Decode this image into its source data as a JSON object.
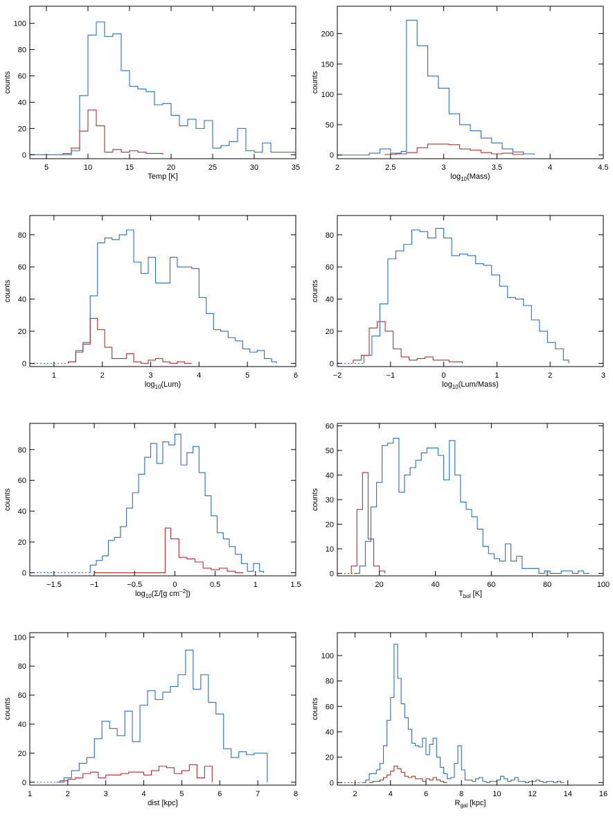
{
  "colors": {
    "all": "#2a6fb8",
    "subset": "#b03030",
    "accent": "#2e8b3e",
    "axis": "#000000"
  },
  "chart_data": [
    {
      "type": "histogram",
      "xlabel": "Temp [K]",
      "ylabel": "counts",
      "xlim": [
        3,
        35
      ],
      "ylim": [
        -3,
        113
      ],
      "xticks": [
        5,
        10,
        15,
        20,
        25,
        30,
        35
      ],
      "yticks": [
        0,
        20,
        40,
        60,
        80,
        100
      ],
      "series": [
        {
          "color": "#2a6fb8",
          "x": [
            3,
            4,
            5,
            6,
            7,
            8,
            9,
            10,
            11,
            12,
            13,
            14,
            15,
            16,
            17,
            18,
            19,
            20,
            21,
            22,
            23,
            24,
            25,
            26,
            27,
            28,
            29,
            30,
            31,
            32,
            33,
            34,
            35
          ],
          "values": [
            0,
            0,
            0,
            0,
            0,
            3,
            45,
            91,
            101,
            90,
            92,
            64,
            52,
            50,
            48,
            38,
            39,
            30,
            22,
            27,
            20,
            26,
            5,
            7,
            10,
            20,
            3,
            2,
            9,
            2,
            2,
            2
          ]
        },
        {
          "color": "#b03030",
          "x": [
            7,
            8,
            9,
            10,
            11,
            12,
            13,
            14,
            15,
            16,
            17,
            18,
            19
          ],
          "values": [
            1,
            5,
            18,
            34,
            22,
            2,
            4,
            2,
            3,
            2,
            1,
            1
          ]
        }
      ]
    },
    {
      "type": "histogram",
      "xlabel": "log10(Mass)",
      "ylabel": "counts",
      "xlim": [
        2.0,
        4.5
      ],
      "ylim": [
        -6,
        245
      ],
      "xticks": [
        2.0,
        2.5,
        3.0,
        3.5,
        4.0,
        4.5
      ],
      "yticks": [
        0,
        50,
        100,
        150,
        200
      ],
      "series": [
        {
          "color": "#2a6fb8",
          "x": [
            2.0,
            2.1,
            2.2,
            2.3,
            2.4,
            2.5,
            2.6,
            2.65,
            2.75,
            2.85,
            2.95,
            3.05,
            3.15,
            3.25,
            3.35,
            3.45,
            3.55,
            3.65,
            3.75,
            3.85
          ],
          "values": [
            0,
            0,
            0,
            3,
            10,
            3,
            6,
            222,
            180,
            130,
            110,
            68,
            50,
            40,
            28,
            20,
            10,
            5,
            2
          ]
        },
        {
          "color": "#b03030",
          "x": [
            2.45,
            2.55,
            2.65,
            2.75,
            2.85,
            2.95,
            3.05,
            3.15,
            3.25,
            3.35,
            3.45,
            3.55,
            3.65,
            3.75
          ],
          "values": [
            1,
            2,
            4,
            12,
            18,
            18,
            17,
            10,
            8,
            4,
            2,
            3,
            1
          ]
        }
      ]
    },
    {
      "type": "histogram",
      "xlabel": "log10(Lum)",
      "ylabel": "counts",
      "xlim": [
        0.5,
        6
      ],
      "ylim": [
        -2,
        92
      ],
      "xticks": [
        1,
        2,
        3,
        4,
        5,
        6
      ],
      "yticks": [
        0,
        20,
        40,
        60,
        80
      ],
      "series": [
        {
          "color": "#2a6fb8",
          "x": [
            1.3,
            1.45,
            1.6,
            1.75,
            1.9,
            2.05,
            2.2,
            2.35,
            2.5,
            2.65,
            2.8,
            2.95,
            3.1,
            3.25,
            3.4,
            3.55,
            3.7,
            3.85,
            4.0,
            4.15,
            4.3,
            4.45,
            4.6,
            4.75,
            4.9,
            5.05,
            5.2,
            5.35,
            5.5,
            5.6
          ],
          "values": [
            1,
            8,
            13,
            42,
            75,
            78,
            77,
            80,
            83,
            63,
            56,
            66,
            50,
            50,
            66,
            60,
            60,
            59,
            41,
            31,
            21,
            20,
            16,
            14,
            9,
            7,
            8,
            3,
            1
          ]
        },
        {
          "color": "#b03030",
          "x": [
            1.3,
            1.45,
            1.6,
            1.75,
            1.9,
            2.05,
            2.2,
            2.35,
            2.5,
            2.65,
            2.8,
            2.95,
            3.1,
            3.25,
            3.4,
            3.55,
            3.7,
            3.85
          ],
          "values": [
            1,
            7,
            12,
            28,
            21,
            10,
            3,
            3,
            6,
            1,
            0,
            2,
            3,
            1,
            0,
            1,
            0
          ]
        }
      ]
    },
    {
      "type": "histogram",
      "xlabel": "log10(Lum/Mass)",
      "ylabel": "counts",
      "xlim": [
        -2,
        3
      ],
      "ylim": [
        -2,
        92
      ],
      "xticks": [
        -2,
        -1,
        0,
        1,
        2,
        3
      ],
      "yticks": [
        0,
        20,
        40,
        60,
        80
      ],
      "series": [
        {
          "color": "#2a6fb8",
          "x": [
            -1.5,
            -1.35,
            -1.2,
            -1.05,
            -0.9,
            -0.75,
            -0.6,
            -0.45,
            -0.3,
            -0.15,
            0.0,
            0.15,
            0.3,
            0.45,
            0.6,
            0.75,
            0.9,
            1.05,
            1.2,
            1.35,
            1.5,
            1.65,
            1.8,
            1.95,
            2.1,
            2.25,
            2.35
          ],
          "values": [
            5,
            17,
            37,
            65,
            70,
            74,
            83,
            82,
            78,
            84,
            78,
            67,
            68,
            67,
            62,
            61,
            55,
            48,
            41,
            40,
            36,
            27,
            20,
            13,
            9,
            2
          ]
        },
        {
          "color": "#b03030",
          "x": [
            -1.7,
            -1.55,
            -1.4,
            -1.25,
            -1.1,
            -0.95,
            -0.8,
            -0.65,
            -0.5,
            -0.35,
            -0.2,
            -0.05,
            0.1,
            0.25,
            0.35
          ],
          "values": [
            2,
            5,
            22,
            26,
            20,
            9,
            4,
            2,
            3,
            4,
            2,
            2,
            1,
            1
          ]
        }
      ]
    },
    {
      "type": "histogram",
      "xlabel": "log10(Σ/[g cm−2])",
      "ylabel": "counts",
      "xlim": [
        -1.8,
        1.5
      ],
      "ylim": [
        -2,
        97
      ],
      "xticks": [
        -1.5,
        -1.0,
        -0.5,
        0.0,
        0.5,
        1.0,
        1.5
      ],
      "yticks": [
        0,
        20,
        40,
        60,
        80
      ],
      "series": [
        {
          "color": "#2a6fb8",
          "x": [
            -1.05,
            -0.975,
            -0.9,
            -0.825,
            -0.75,
            -0.675,
            -0.6,
            -0.525,
            -0.45,
            -0.375,
            -0.3,
            -0.225,
            -0.15,
            -0.075,
            0.0,
            0.075,
            0.15,
            0.225,
            0.3,
            0.375,
            0.45,
            0.525,
            0.6,
            0.675,
            0.75,
            0.825,
            0.9,
            0.975,
            1.05,
            1.1
          ],
          "values": [
            5,
            8,
            11,
            21,
            23,
            30,
            42,
            52,
            64,
            75,
            84,
            71,
            85,
            83,
            90,
            70,
            78,
            82,
            65,
            50,
            37,
            26,
            22,
            17,
            12,
            6,
            1,
            6,
            1
          ]
        },
        {
          "color": "#b03030",
          "x": [
            -1.0,
            -0.9,
            -0.8,
            -0.7,
            -0.6,
            -0.5,
            -0.4,
            -0.3,
            -0.2,
            -0.12,
            -0.05,
            0.05,
            0.15,
            0.25,
            0.35,
            0.45,
            0.55,
            0.65,
            0.75,
            0.85
          ],
          "values": [
            0,
            0,
            0,
            0,
            0,
            0,
            0,
            0,
            0,
            29,
            22,
            10,
            9,
            7,
            3,
            2,
            3,
            1,
            0
          ]
        }
      ]
    },
    {
      "type": "histogram",
      "xlabel": "Tbol [K]",
      "ylabel": "counts",
      "xlim": [
        5,
        100
      ],
      "ylim": [
        -1,
        61
      ],
      "xticks": [
        20,
        40,
        60,
        80,
        100
      ],
      "yticks": [
        0,
        10,
        20,
        30,
        40,
        50,
        60
      ],
      "series": [
        {
          "color": "#2a6fb8",
          "x": [
            11,
            13,
            15,
            17,
            19,
            21,
            23,
            25,
            27,
            29,
            31,
            33,
            35,
            37,
            39,
            41,
            43,
            45,
            47,
            49,
            51,
            53,
            55,
            57,
            59,
            61,
            63,
            65,
            67,
            69,
            71,
            73,
            75,
            77,
            79,
            81,
            83,
            85,
            87,
            89,
            91,
            93,
            95
          ],
          "values": [
            0,
            3,
            13,
            27,
            37,
            52,
            53,
            55,
            33,
            40,
            43,
            46,
            49,
            51,
            51,
            48,
            38,
            54,
            40,
            29,
            26,
            23,
            18,
            11,
            8,
            6,
            5,
            12,
            5,
            7,
            2,
            2,
            2,
            0,
            1,
            0,
            0,
            1,
            1,
            0,
            1,
            0
          ]
        },
        {
          "color": "#b03030",
          "x": [
            10,
            12,
            14,
            16,
            18,
            20,
            22
          ],
          "values": [
            3,
            26,
            41,
            14,
            3,
            1
          ]
        }
      ]
    },
    {
      "type": "histogram",
      "xlabel": "dist [kpc]",
      "ylabel": "counts",
      "xlim": [
        1,
        8
      ],
      "ylim": [
        -2,
        103
      ],
      "xticks": [
        1,
        2,
        3,
        4,
        5,
        6,
        7,
        8
      ],
      "yticks": [
        0,
        20,
        40,
        60,
        80,
        100
      ],
      "series": [
        {
          "color": "#2a6fb8",
          "x": [
            1.7,
            1.9,
            2.1,
            2.3,
            2.5,
            2.7,
            2.9,
            3.1,
            3.3,
            3.5,
            3.7,
            3.9,
            4.1,
            4.3,
            4.5,
            4.7,
            4.9,
            5.1,
            5.3,
            5.5,
            5.7,
            5.9,
            6.1,
            6.3,
            6.5,
            6.7,
            6.9,
            7.1,
            7.25
          ],
          "values": [
            0,
            3,
            8,
            13,
            17,
            30,
            42,
            37,
            32,
            49,
            28,
            53,
            63,
            57,
            62,
            66,
            74,
            91,
            64,
            74,
            55,
            47,
            23,
            17,
            21,
            19,
            20,
            20
          ]
        },
        {
          "color": "#b03030",
          "x": [
            1.8,
            2.0,
            2.2,
            2.4,
            2.6,
            2.8,
            3.0,
            3.2,
            3.4,
            3.6,
            3.8,
            4.0,
            4.2,
            4.4,
            4.6,
            4.8,
            5.0,
            5.2,
            5.4,
            5.6,
            5.8
          ],
          "values": [
            1,
            2,
            3,
            6,
            7,
            3,
            5,
            5,
            6,
            7,
            7,
            5,
            8,
            11,
            10,
            6,
            8,
            12,
            3,
            11
          ]
        }
      ]
    },
    {
      "type": "histogram",
      "xlabel": "Rgal [kpc]",
      "ylabel": "counts",
      "xlim": [
        1,
        16
      ],
      "ylim": [
        -2,
        118
      ],
      "xticks": [
        2,
        4,
        6,
        8,
        10,
        12,
        14,
        16
      ],
      "yticks": [
        0,
        20,
        40,
        60,
        80,
        100
      ],
      "series": [
        {
          "color": "#2a6fb8",
          "x": [
            2.4,
            2.6,
            2.8,
            3.0,
            3.2,
            3.4,
            3.6,
            3.8,
            4.0,
            4.2,
            4.4,
            4.6,
            4.8,
            5.0,
            5.2,
            5.4,
            5.6,
            5.8,
            6.0,
            6.2,
            6.4,
            6.6,
            6.8,
            7.0,
            7.2,
            7.4,
            7.6,
            7.8,
            8.0,
            8.2,
            8.4,
            8.6,
            8.8,
            9.0,
            9.2,
            9.4,
            9.6,
            9.8,
            10.0,
            10.2,
            10.4,
            10.6,
            10.8,
            11.0,
            11.2,
            11.4,
            11.6,
            11.8,
            12.0,
            12.2,
            12.4,
            12.6,
            12.8,
            13.0,
            13.2,
            13.4,
            13.6,
            13.8
          ],
          "values": [
            0,
            2,
            7,
            7,
            10,
            15,
            29,
            49,
            67,
            109,
            82,
            62,
            51,
            42,
            31,
            29,
            28,
            35,
            22,
            30,
            35,
            20,
            12,
            7,
            3,
            4,
            15,
            29,
            10,
            2,
            2,
            1,
            3,
            4,
            1,
            0,
            1,
            1,
            2,
            5,
            3,
            1,
            2,
            4,
            1,
            1,
            0,
            1,
            1,
            2,
            1,
            0,
            1,
            1,
            0,
            1,
            0
          ]
        },
        {
          "color": "#b03030",
          "x": [
            2.8,
            3.0,
            3.2,
            3.4,
            3.6,
            3.8,
            4.0,
            4.2,
            4.4,
            4.6,
            4.8,
            5.0,
            5.2,
            5.4,
            5.6,
            5.8,
            6.0,
            6.2,
            6.4,
            6.6,
            6.8,
            7.0,
            7.2
          ],
          "values": [
            0,
            1,
            1,
            2,
            4,
            6,
            9,
            13,
            11,
            8,
            5,
            4,
            5,
            3,
            3,
            1,
            3,
            2,
            4,
            2,
            1,
            0
          ]
        }
      ]
    }
  ]
}
